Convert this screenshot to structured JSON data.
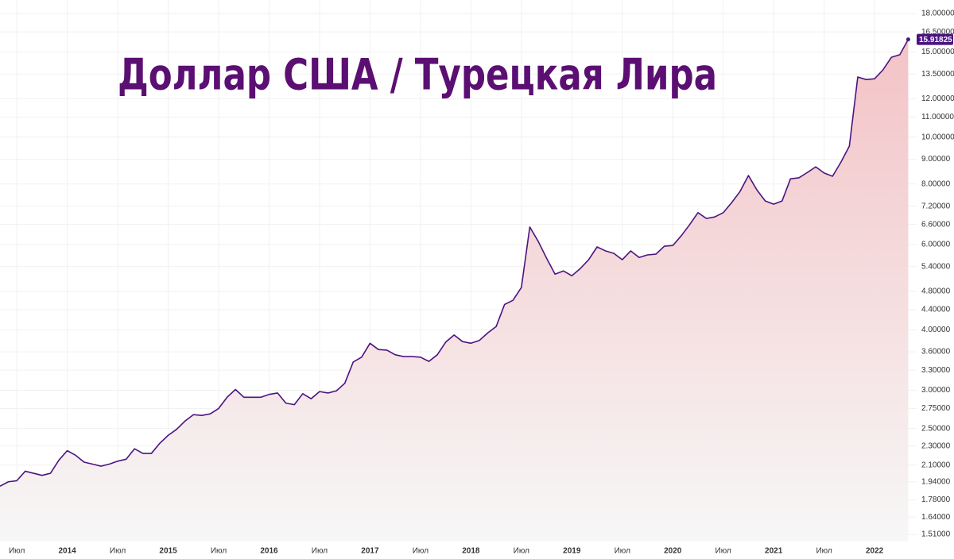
{
  "chart_data": {
    "type": "area",
    "title": "Доллар США / Турецкая Лира",
    "log_scale": true,
    "grid": true,
    "y_axis_side": "right",
    "color": "#4b1480",
    "fill_top_color": "#f3c3c6",
    "fill_bottom_color": "#f7f7f7",
    "title_color": "#5b0f72",
    "x": [
      "2013-05",
      "2013-06",
      "2013-07",
      "2013-08",
      "2013-09",
      "2013-10",
      "2013-11",
      "2013-12",
      "2014-01",
      "2014-02",
      "2014-03",
      "2014-04",
      "2014-05",
      "2014-06",
      "2014-07",
      "2014-08",
      "2014-09",
      "2014-10",
      "2014-11",
      "2014-12",
      "2015-01",
      "2015-02",
      "2015-03",
      "2015-04",
      "2015-05",
      "2015-06",
      "2015-07",
      "2015-08",
      "2015-09",
      "2015-10",
      "2015-11",
      "2015-12",
      "2016-01",
      "2016-02",
      "2016-03",
      "2016-04",
      "2016-05",
      "2016-06",
      "2016-07",
      "2016-08",
      "2016-09",
      "2016-10",
      "2016-11",
      "2016-12",
      "2017-01",
      "2017-02",
      "2017-03",
      "2017-04",
      "2017-05",
      "2017-06",
      "2017-07",
      "2017-08",
      "2017-09",
      "2017-10",
      "2017-11",
      "2017-12",
      "2018-01",
      "2018-02",
      "2018-03",
      "2018-04",
      "2018-05",
      "2018-06",
      "2018-07",
      "2018-08",
      "2018-09",
      "2018-10",
      "2018-11",
      "2018-12",
      "2019-01",
      "2019-02",
      "2019-03",
      "2019-04",
      "2019-05",
      "2019-06",
      "2019-07",
      "2019-08",
      "2019-09",
      "2019-10",
      "2019-11",
      "2019-12",
      "2020-01",
      "2020-02",
      "2020-03",
      "2020-04",
      "2020-05",
      "2020-06",
      "2020-07",
      "2020-08",
      "2020-09",
      "2020-10",
      "2020-11",
      "2020-12",
      "2021-01",
      "2021-02",
      "2021-03",
      "2021-04",
      "2021-05",
      "2021-06",
      "2021-07",
      "2021-08",
      "2021-09",
      "2021-10",
      "2021-11",
      "2021-12",
      "2022-01",
      "2022-02",
      "2022-03",
      "2022-04",
      "2022-05"
    ],
    "values": [
      1.9,
      1.94,
      1.95,
      2.04,
      2.02,
      2.0,
      2.02,
      2.15,
      2.25,
      2.2,
      2.13,
      2.11,
      2.09,
      2.11,
      2.14,
      2.16,
      2.27,
      2.22,
      2.22,
      2.33,
      2.42,
      2.49,
      2.59,
      2.67,
      2.66,
      2.68,
      2.75,
      2.9,
      3.01,
      2.9,
      2.9,
      2.9,
      2.94,
      2.96,
      2.82,
      2.8,
      2.95,
      2.88,
      2.98,
      2.96,
      2.99,
      3.1,
      3.43,
      3.51,
      3.75,
      3.64,
      3.63,
      3.55,
      3.52,
      3.52,
      3.51,
      3.44,
      3.55,
      3.77,
      3.9,
      3.78,
      3.75,
      3.8,
      3.94,
      4.06,
      4.51,
      4.6,
      4.89,
      6.52,
      6.09,
      5.62,
      5.21,
      5.29,
      5.17,
      5.35,
      5.58,
      5.93,
      5.82,
      5.75,
      5.58,
      5.82,
      5.64,
      5.71,
      5.73,
      5.95,
      5.97,
      6.25,
      6.59,
      6.98,
      6.79,
      6.84,
      6.98,
      7.32,
      7.72,
      8.33,
      7.78,
      7.38,
      7.27,
      7.38,
      8.2,
      8.24,
      8.45,
      8.68,
      8.43,
      8.3,
      8.88,
      9.58,
      13.31,
      13.15,
      13.2,
      13.77,
      14.62,
      14.8,
      15.91825
    ],
    "xlim": [
      "2013-05",
      "2022-06"
    ],
    "xticks": [
      {
        "value": "2013-07",
        "label": "Июл"
      },
      {
        "value": "2014-01",
        "label": "2014"
      },
      {
        "value": "2014-07",
        "label": "Июл"
      },
      {
        "value": "2015-01",
        "label": "2015"
      },
      {
        "value": "2015-07",
        "label": "Июл"
      },
      {
        "value": "2016-01",
        "label": "2016"
      },
      {
        "value": "2016-07",
        "label": "Июл"
      },
      {
        "value": "2017-01",
        "label": "2017"
      },
      {
        "value": "2017-07",
        "label": "Июл"
      },
      {
        "value": "2018-01",
        "label": "2018"
      },
      {
        "value": "2018-07",
        "label": "Июл"
      },
      {
        "value": "2019-01",
        "label": "2019"
      },
      {
        "value": "2019-07",
        "label": "Июл"
      },
      {
        "value": "2020-01",
        "label": "2020"
      },
      {
        "value": "2020-07",
        "label": "Июл"
      },
      {
        "value": "2021-01",
        "label": "2021"
      },
      {
        "value": "2021-07",
        "label": "Июл"
      },
      {
        "value": "2022-01",
        "label": "2022"
      }
    ],
    "ylim": [
      1.46,
      19.2
    ],
    "yticks": [
      {
        "value": 1.51,
        "label": "1.51000"
      },
      {
        "value": 1.64,
        "label": "1.64000"
      },
      {
        "value": 1.78,
        "label": "1.78000"
      },
      {
        "value": 1.94,
        "label": "1.94000"
      },
      {
        "value": 2.1,
        "label": "2.10000"
      },
      {
        "value": 2.3,
        "label": "2.30000"
      },
      {
        "value": 2.5,
        "label": "2.50000"
      },
      {
        "value": 2.75,
        "label": "2.75000"
      },
      {
        "value": 3,
        "label": "3.00000"
      },
      {
        "value": 3.3,
        "label": "3.30000"
      },
      {
        "value": 3.6,
        "label": "3.60000"
      },
      {
        "value": 4,
        "label": "4.00000"
      },
      {
        "value": 4.4,
        "label": "4.40000"
      },
      {
        "value": 4.8,
        "label": "4.80000"
      },
      {
        "value": 5.4,
        "label": "5.40000"
      },
      {
        "value": 6,
        "label": "6.00000"
      },
      {
        "value": 6.6,
        "label": "6.60000"
      },
      {
        "value": 7.2,
        "label": "7.20000"
      },
      {
        "value": 8,
        "label": "8.00000"
      },
      {
        "value": 9,
        "label": "9.00000"
      },
      {
        "value": 10,
        "label": "10.00000"
      },
      {
        "value": 11,
        "label": "11.00000"
      },
      {
        "value": 12,
        "label": "12.00000"
      },
      {
        "value": 13.5,
        "label": "13.50000"
      },
      {
        "value": 15,
        "label": "15.00000"
      },
      {
        "value": 16.5,
        "label": "16.50000"
      },
      {
        "value": 18,
        "label": "18.00000"
      }
    ]
  }
}
